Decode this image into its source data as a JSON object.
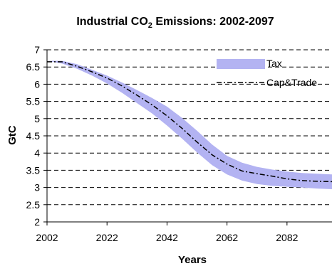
{
  "chart_data": {
    "type": "line",
    "title": "Industrial CO",
    "title_sub": "2",
    "title_suffix": " Emissions: 2002-2097",
    "xlabel": "Years",
    "ylabel": "GtC",
    "xlim": [
      2002,
      2097
    ],
    "ylim": [
      2,
      7
    ],
    "xticks": [
      2002,
      2022,
      2042,
      2062,
      2082
    ],
    "yticks": [
      2,
      2.5,
      3,
      3.5,
      4,
      4.5,
      5,
      5.5,
      6,
      6.5,
      7
    ],
    "grid": "horizontal-dashed",
    "legend_position": "top-right",
    "colors": {
      "tax": "#b3b3f2",
      "cap": "#000000"
    },
    "series": [
      {
        "name": "Tax",
        "style": "band",
        "x": [
          2002,
          2007,
          2012,
          2017,
          2022,
          2027,
          2032,
          2037,
          2042,
          2047,
          2052,
          2057,
          2062,
          2067,
          2072,
          2077,
          2082,
          2087,
          2092,
          2097
        ],
        "upper": [
          6.68,
          6.68,
          6.58,
          6.42,
          6.25,
          6.05,
          5.83,
          5.6,
          5.35,
          5.02,
          4.65,
          4.25,
          3.92,
          3.72,
          3.6,
          3.52,
          3.46,
          3.42,
          3.4,
          3.38
        ],
        "lower": [
          6.68,
          6.6,
          6.45,
          6.25,
          6.02,
          5.75,
          5.45,
          5.15,
          4.8,
          4.42,
          4.02,
          3.65,
          3.38,
          3.2,
          3.1,
          3.05,
          3.02,
          3.0,
          2.97,
          2.95
        ]
      },
      {
        "name": "Cap&Trade",
        "style": "dash-dot",
        "x": [
          2002,
          2007,
          2012,
          2017,
          2022,
          2027,
          2032,
          2037,
          2042,
          2047,
          2052,
          2057,
          2062,
          2067,
          2072,
          2077,
          2082,
          2087,
          2092,
          2097
        ],
        "values": [
          6.65,
          6.65,
          6.52,
          6.36,
          6.18,
          5.95,
          5.68,
          5.4,
          5.08,
          4.72,
          4.32,
          3.95,
          3.68,
          3.48,
          3.4,
          3.33,
          3.25,
          3.2,
          3.18,
          3.17
        ]
      }
    ]
  }
}
